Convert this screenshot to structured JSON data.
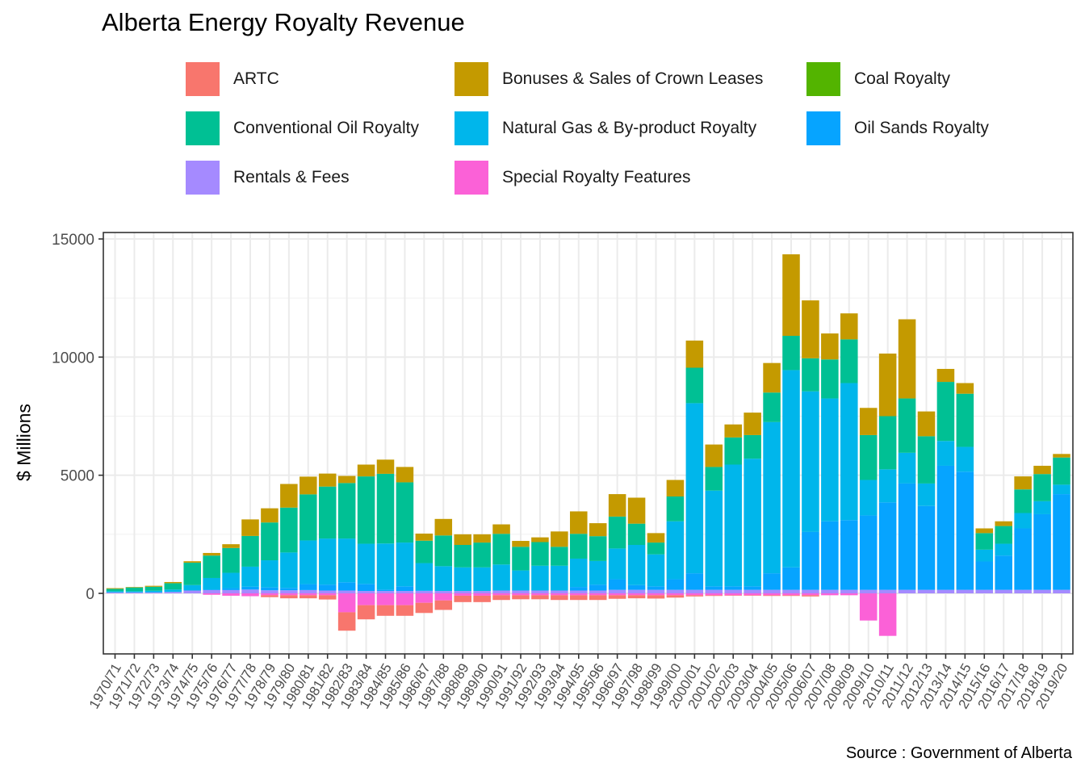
{
  "chart_data": {
    "type": "bar",
    "stacked": true,
    "title": "Alberta Energy Royalty Revenue",
    "xlabel": "",
    "ylabel": "$ Millions",
    "caption": "Source : Government of Alberta",
    "ylim": [
      -2500,
      15000
    ],
    "yticks": [
      0,
      5000,
      10000,
      15000
    ],
    "grid": true,
    "legend_position": "top",
    "categories": [
      "1970/71",
      "1971/72",
      "1972/73",
      "1973/74",
      "1974/75",
      "1975/76",
      "1976/77",
      "1977/78",
      "1978/79",
      "1979/80",
      "1980/81",
      "1981/82",
      "1982/83",
      "1983/84",
      "1984/85",
      "1985/86",
      "1986/87",
      "1987/88",
      "1988/89",
      "1989/90",
      "1990/91",
      "1991/92",
      "1992/93",
      "1993/94",
      "1994/95",
      "1995/96",
      "1996/97",
      "1997/98",
      "1998/99",
      "1999/00",
      "2000/01",
      "2001/02",
      "2002/03",
      "2003/04",
      "2004/05",
      "2005/06",
      "2006/07",
      "2007/08",
      "2008/09",
      "2009/10",
      "2010/11",
      "2011/12",
      "2012/13",
      "2013/14",
      "2014/15",
      "2015/16",
      "2016/17",
      "2017/18",
      "2018/19",
      "2019/20"
    ],
    "series": [
      {
        "name": "ARTC",
        "color": "#F8766D",
        "values": [
          0,
          0,
          0,
          0,
          0,
          0,
          0,
          0,
          -80,
          -130,
          -130,
          -180,
          -780,
          -600,
          -450,
          -450,
          -430,
          -400,
          -270,
          -270,
          -200,
          -170,
          -170,
          -200,
          -200,
          -200,
          -150,
          -130,
          -140,
          -100,
          -50,
          -30,
          -20,
          -20,
          -30,
          -30,
          -50,
          0,
          0,
          0,
          0,
          0,
          0,
          0,
          0,
          0,
          0,
          0,
          0,
          0
        ]
      },
      {
        "name": "Bonuses & Sales of Crown Leases",
        "color": "#C49A00",
        "values": [
          30,
          20,
          40,
          50,
          60,
          110,
          160,
          700,
          600,
          1000,
          750,
          550,
          300,
          500,
          600,
          650,
          300,
          700,
          450,
          350,
          400,
          250,
          200,
          650,
          950,
          550,
          950,
          1100,
          400,
          700,
          1150,
          950,
          550,
          950,
          1250,
          3450,
          2450,
          1100,
          1100,
          1150,
          2650,
          3350,
          1050,
          550,
          450,
          200,
          200,
          550,
          350,
          150
        ]
      },
      {
        "name": "Coal Royalty",
        "color": "#53B400",
        "values": [
          0,
          0,
          0,
          0,
          0,
          0,
          0,
          0,
          0,
          0,
          0,
          0,
          0,
          0,
          0,
          0,
          0,
          0,
          0,
          0,
          0,
          0,
          0,
          0,
          0,
          0,
          0,
          0,
          0,
          0,
          0,
          0,
          0,
          0,
          0,
          0,
          0,
          0,
          0,
          0,
          0,
          0,
          0,
          0,
          0,
          0,
          0,
          0,
          0,
          0
        ]
      },
      {
        "name": "Conventional Oil Royalty",
        "color": "#00C094",
        "values": [
          100,
          160,
          170,
          270,
          950,
          950,
          1050,
          1300,
          1600,
          1900,
          1950,
          2200,
          2350,
          2850,
          2950,
          2550,
          950,
          1300,
          950,
          1050,
          1300,
          1000,
          1000,
          800,
          1050,
          1050,
          1350,
          900,
          500,
          1050,
          1500,
          1000,
          1150,
          1000,
          1250,
          1450,
          1400,
          1650,
          1850,
          1900,
          2250,
          2300,
          2000,
          2500,
          2250,
          700,
          750,
          1000,
          1150,
          1150
        ]
      },
      {
        "name": "Natural Gas & By-product Royalty",
        "color": "#00B6EB",
        "values": [
          50,
          50,
          70,
          100,
          230,
          480,
          650,
          850,
          1150,
          1500,
          1850,
          1950,
          1850,
          1700,
          1950,
          1850,
          1150,
          1050,
          1000,
          1000,
          1100,
          850,
          1050,
          1050,
          1200,
          1000,
          1300,
          1700,
          1350,
          2450,
          7200,
          4050,
          5150,
          5400,
          6400,
          8350,
          5950,
          5200,
          5800,
          1500,
          1400,
          1300,
          950,
          1050,
          1050,
          500,
          500,
          650,
          550,
          400
        ]
      },
      {
        "name": "Oil Sands Royalty",
        "color": "#06A4FF",
        "values": [
          0,
          0,
          0,
          0,
          0,
          30,
          80,
          120,
          120,
          100,
          250,
          250,
          350,
          300,
          60,
          200,
          30,
          0,
          0,
          0,
          0,
          0,
          0,
          0,
          150,
          250,
          450,
          200,
          150,
          450,
          700,
          150,
          150,
          150,
          700,
          950,
          2450,
          2900,
          2950,
          3150,
          3700,
          4500,
          3550,
          5250,
          5000,
          1200,
          1450,
          2600,
          3200,
          4050
        ]
      },
      {
        "name": "Rentals & Fees",
        "color": "#A58AFF",
        "values": [
          40,
          40,
          40,
          60,
          120,
          140,
          140,
          160,
          130,
          130,
          140,
          120,
          120,
          100,
          100,
          100,
          100,
          100,
          100,
          100,
          120,
          120,
          120,
          120,
          120,
          120,
          150,
          150,
          150,
          150,
          150,
          150,
          150,
          150,
          150,
          150,
          150,
          150,
          150,
          150,
          150,
          150,
          150,
          150,
          150,
          150,
          150,
          150,
          150,
          150
        ]
      },
      {
        "name": "Special Royalty Features",
        "color": "#FB61D7",
        "values": [
          0,
          0,
          0,
          0,
          0,
          -60,
          -100,
          -120,
          -80,
          -80,
          -80,
          -80,
          -800,
          -500,
          -500,
          -500,
          -400,
          -300,
          -100,
          -100,
          -80,
          -80,
          -80,
          -80,
          -80,
          -80,
          -80,
          -80,
          -80,
          -80,
          -80,
          -80,
          -80,
          -80,
          -80,
          -80,
          -80,
          -80,
          -80,
          -1150,
          -1800,
          0,
          0,
          0,
          0,
          0,
          0,
          0,
          0,
          0
        ]
      }
    ]
  }
}
